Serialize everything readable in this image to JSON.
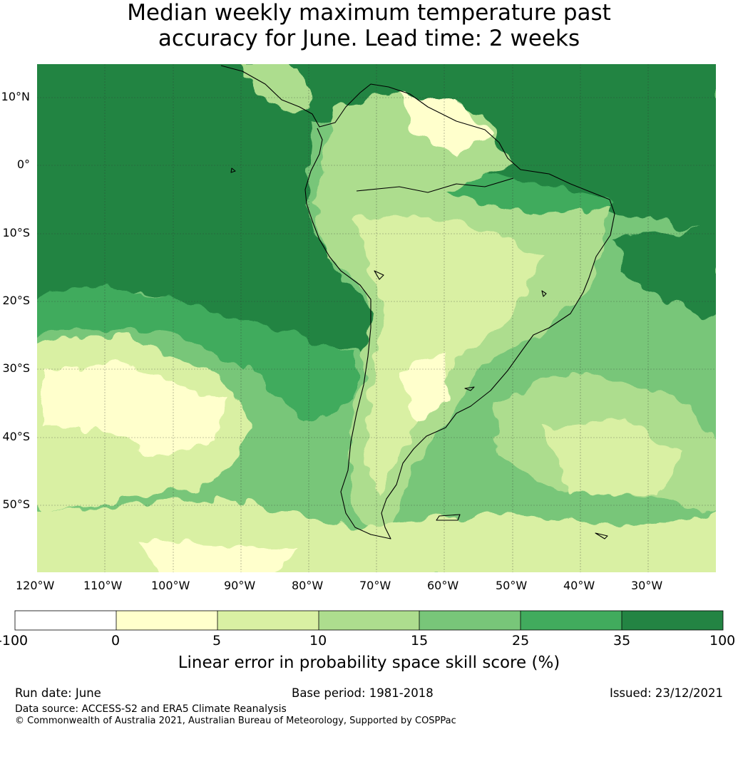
{
  "title": {
    "line1": "Median weekly maximum temperature past",
    "line2": "accuracy for June. Lead time: 2 weeks"
  },
  "map": {
    "lat_labels": [
      "10°N",
      "0°",
      "10°S",
      "20°S",
      "30°S",
      "40°S",
      "50°S"
    ],
    "lon_labels": [
      "120°W",
      "110°W",
      "100°W",
      "90°W",
      "80°W",
      "70°W",
      "60°W",
      "50°W",
      "40°W",
      "30°W"
    ],
    "colors": {
      "lt0": "#ffffff",
      "c0_5": "#ffffcc",
      "c5_10": "#d9f0a3",
      "c10_15": "#addd8e",
      "c15_25": "#78c679",
      "c25_35": "#41ab5d",
      "c35_100": "#238443",
      "coast": "#000000"
    }
  },
  "colorbar": {
    "ticks": [
      "-100",
      "0",
      "5",
      "10",
      "15",
      "25",
      "35",
      "100"
    ],
    "label": "Linear error in probability space skill score (%)"
  },
  "footer": {
    "run_date": "Run date: June",
    "base_period": "Base period: 1981-2018",
    "issued": "Issued: 23/12/2021",
    "data_source": "Data source: ACCESS-S2 and ERA5 Climate Reanalysis",
    "copyright": "© Commonwealth of Australia 2021, Australian Bureau of Meteorology, Supported by COSPPac"
  }
}
